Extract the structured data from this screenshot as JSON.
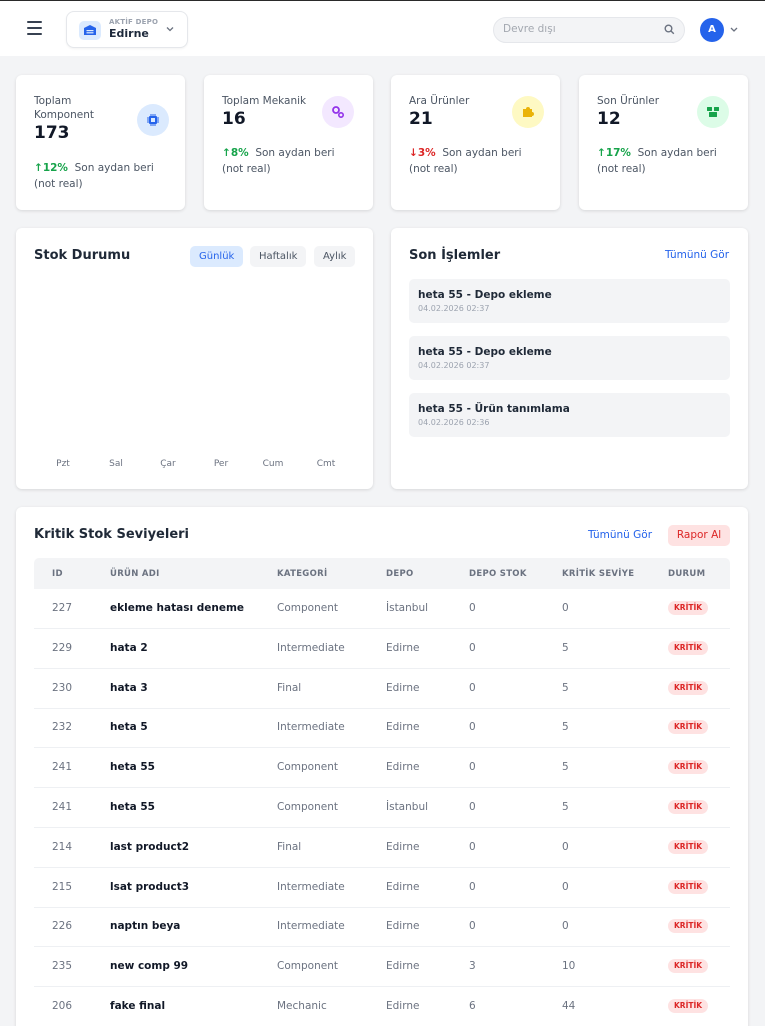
{
  "header": {
    "depo_label": "AKTİF DEPO",
    "depo_value": "Edirne",
    "search_placeholder": "Devre dışı",
    "avatar_initial": "A"
  },
  "stats": [
    {
      "title": "Toplam Komponent",
      "value": "173",
      "direction": "up",
      "pct": "12%",
      "note": "Son aydan beri",
      "note2": "(not real)",
      "icon": "chip-icon",
      "color": "#2563eb"
    },
    {
      "title": "Toplam Mekanik",
      "value": "16",
      "direction": "up",
      "pct": "8%",
      "note": "Son aydan beri",
      "note2": "(not real)",
      "icon": "gears-icon",
      "color": "#9333ea"
    },
    {
      "title": "Ara Ürünler",
      "value": "21",
      "direction": "down",
      "pct": "3%",
      "note": "Son aydan beri",
      "note2": "(not real)",
      "icon": "puzzle-icon",
      "color": "#eab308"
    },
    {
      "title": "Son Ürünler",
      "value": "12",
      "direction": "up",
      "pct": "17%",
      "note": "Son aydan beri",
      "note2": "(not real)",
      "icon": "boxes-icon",
      "color": "#16a34a"
    }
  ],
  "stock": {
    "title": "Stok Durumu",
    "tabs": [
      "Günlük",
      "Haftalık",
      "Aylık"
    ],
    "active_tab": "Günlük",
    "days": [
      "Pzt",
      "Sal",
      "Çar",
      "Per",
      "Cum",
      "Cmt"
    ]
  },
  "transactions": {
    "title": "Son İşlemler",
    "see_all": "Tümünü Gör",
    "items": [
      {
        "title": "heta 55 - Depo ekleme",
        "time": "04.02.2026 02:37"
      },
      {
        "title": "heta 55 - Depo ekleme",
        "time": "04.02.2026 02:37"
      },
      {
        "title": "heta 55 - Ürün tanımlama",
        "time": "04.02.2026 02:36"
      }
    ]
  },
  "critical": {
    "title": "Kritik Stok Seviyeleri",
    "see_all": "Tümünü Gör",
    "report": "Rapor Al",
    "columns": [
      "ID",
      "ÜRÜN ADI",
      "KATEGORİ",
      "DEPO",
      "DEPO STOK",
      "KRİTİK SEVİYE",
      "DURUM"
    ],
    "rows": [
      {
        "id": "227",
        "name": "ekleme hatası deneme",
        "category": "Component",
        "depo": "İstanbul",
        "stock": "0",
        "level": "0",
        "status": "KRİTİK"
      },
      {
        "id": "229",
        "name": "hata 2",
        "category": "Intermediate",
        "depo": "Edirne",
        "stock": "0",
        "level": "5",
        "status": "KRİTİK"
      },
      {
        "id": "230",
        "name": "hata 3",
        "category": "Final",
        "depo": "Edirne",
        "stock": "0",
        "level": "5",
        "status": "KRİTİK"
      },
      {
        "id": "232",
        "name": "heta 5",
        "category": "Intermediate",
        "depo": "Edirne",
        "stock": "0",
        "level": "5",
        "status": "KRİTİK"
      },
      {
        "id": "241",
        "name": "heta 55",
        "category": "Component",
        "depo": "Edirne",
        "stock": "0",
        "level": "5",
        "status": "KRİTİK"
      },
      {
        "id": "241",
        "name": "heta 55",
        "category": "Component",
        "depo": "İstanbul",
        "stock": "0",
        "level": "5",
        "status": "KRİTİK"
      },
      {
        "id": "214",
        "name": "last product2",
        "category": "Final",
        "depo": "Edirne",
        "stock": "0",
        "level": "0",
        "status": "KRİTİK"
      },
      {
        "id": "215",
        "name": "lsat product3",
        "category": "Intermediate",
        "depo": "Edirne",
        "stock": "0",
        "level": "0",
        "status": "KRİTİK"
      },
      {
        "id": "226",
        "name": "naptın beya",
        "category": "Intermediate",
        "depo": "Edirne",
        "stock": "0",
        "level": "0",
        "status": "KRİTİK"
      },
      {
        "id": "235",
        "name": "new comp 99",
        "category": "Component",
        "depo": "Edirne",
        "stock": "3",
        "level": "10",
        "status": "KRİTİK"
      },
      {
        "id": "206",
        "name": "fake final",
        "category": "Mechanic",
        "depo": "Edirne",
        "stock": "6",
        "level": "44",
        "status": "KRİTİK"
      }
    ]
  }
}
